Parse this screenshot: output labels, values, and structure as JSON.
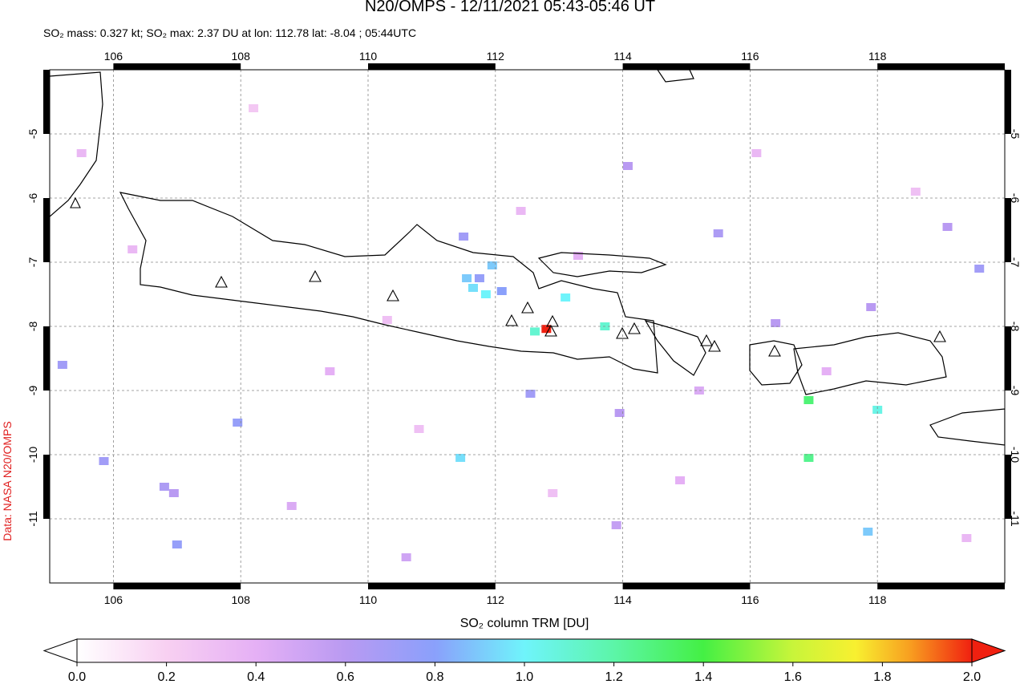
{
  "header": {
    "title": "N20/OMPS - 12/11/2021 05:43-05:46 UT",
    "subtitle": "SO₂ mass: 0.327 kt; SO₂ max: 2.37 DU at lon: 112.78 lat: -8.04 ; 05:44UTC"
  },
  "map": {
    "xlim": [
      105,
      120
    ],
    "ylim": [
      -12,
      -4
    ],
    "xticks": [
      106,
      108,
      110,
      112,
      114,
      116,
      118
    ],
    "yticks": [
      -5,
      -6,
      -7,
      -8,
      -9,
      -10,
      -11
    ],
    "pixels": [
      [
        112.8,
        -8.04,
        2.37
      ],
      [
        112.62,
        -8.08,
        1.1
      ],
      [
        111.65,
        -7.4,
        0.95
      ],
      [
        111.85,
        -7.5,
        1.0
      ],
      [
        111.95,
        -7.05,
        0.9
      ],
      [
        111.55,
        -7.25,
        0.9
      ],
      [
        111.75,
        -7.25,
        0.75
      ],
      [
        112.1,
        -7.45,
        0.8
      ],
      [
        111.5,
        -6.6,
        0.7
      ],
      [
        113.1,
        -7.55,
        1.0
      ],
      [
        113.72,
        -8.0,
        1.1
      ],
      [
        116.92,
        -9.15,
        1.3
      ],
      [
        116.92,
        -10.05,
        1.25
      ],
      [
        118.0,
        -9.3,
        1.05
      ],
      [
        111.45,
        -10.05,
        0.95
      ],
      [
        117.85,
        -11.2,
        0.9
      ],
      [
        106.8,
        -10.5,
        0.65
      ],
      [
        106.95,
        -10.6,
        0.6
      ],
      [
        105.2,
        -8.6,
        0.7
      ],
      [
        105.85,
        -10.1,
        0.7
      ],
      [
        107.0,
        -11.4,
        0.75
      ],
      [
        107.95,
        -9.5,
        0.75
      ],
      [
        112.55,
        -9.05,
        0.7
      ],
      [
        113.95,
        -9.35,
        0.6
      ],
      [
        114.08,
        -5.5,
        0.6
      ],
      [
        115.5,
        -6.55,
        0.65
      ],
      [
        119.6,
        -7.1,
        0.7
      ],
      [
        119.1,
        -6.45,
        0.6
      ],
      [
        117.9,
        -7.7,
        0.6
      ],
      [
        116.4,
        -7.95,
        0.6
      ],
      [
        112.4,
        -6.2,
        0.35
      ],
      [
        113.3,
        -6.9,
        0.4
      ],
      [
        110.3,
        -7.9,
        0.3
      ],
      [
        109.4,
        -8.7,
        0.4
      ],
      [
        108.8,
        -10.8,
        0.45
      ],
      [
        114.9,
        -10.4,
        0.4
      ],
      [
        116.1,
        -5.3,
        0.35
      ],
      [
        118.6,
        -5.9,
        0.3
      ],
      [
        106.3,
        -6.8,
        0.35
      ],
      [
        110.8,
        -9.6,
        0.3
      ],
      [
        115.2,
        -9.0,
        0.45
      ],
      [
        119.4,
        -11.3,
        0.35
      ],
      [
        108.2,
        -4.6,
        0.25
      ],
      [
        113.9,
        -11.1,
        0.55
      ],
      [
        110.6,
        -11.6,
        0.5
      ],
      [
        117.2,
        -8.7,
        0.4
      ],
      [
        105.5,
        -5.3,
        0.35
      ],
      [
        112.9,
        -10.6,
        0.3
      ]
    ]
  },
  "colorbar": {
    "label": "SO₂ column TRM [DU]",
    "ticks": [
      {
        "value": 0,
        "label": "0.0"
      },
      {
        "value": 0.2,
        "label": "0.2"
      },
      {
        "value": 0.4,
        "label": "0.4"
      },
      {
        "value": 0.6,
        "label": "0.6"
      },
      {
        "value": 0.8,
        "label": "0.8"
      },
      {
        "value": 1,
        "label": "1.0"
      },
      {
        "value": 1.2,
        "label": "1.2"
      },
      {
        "value": 1.4,
        "label": "1.4"
      },
      {
        "value": 1.6,
        "label": "1.6"
      },
      {
        "value": 1.8,
        "label": "1.8"
      },
      {
        "value": 2,
        "label": "2.0"
      }
    ]
  },
  "credit": "Data: NASA N20/OMPS"
}
